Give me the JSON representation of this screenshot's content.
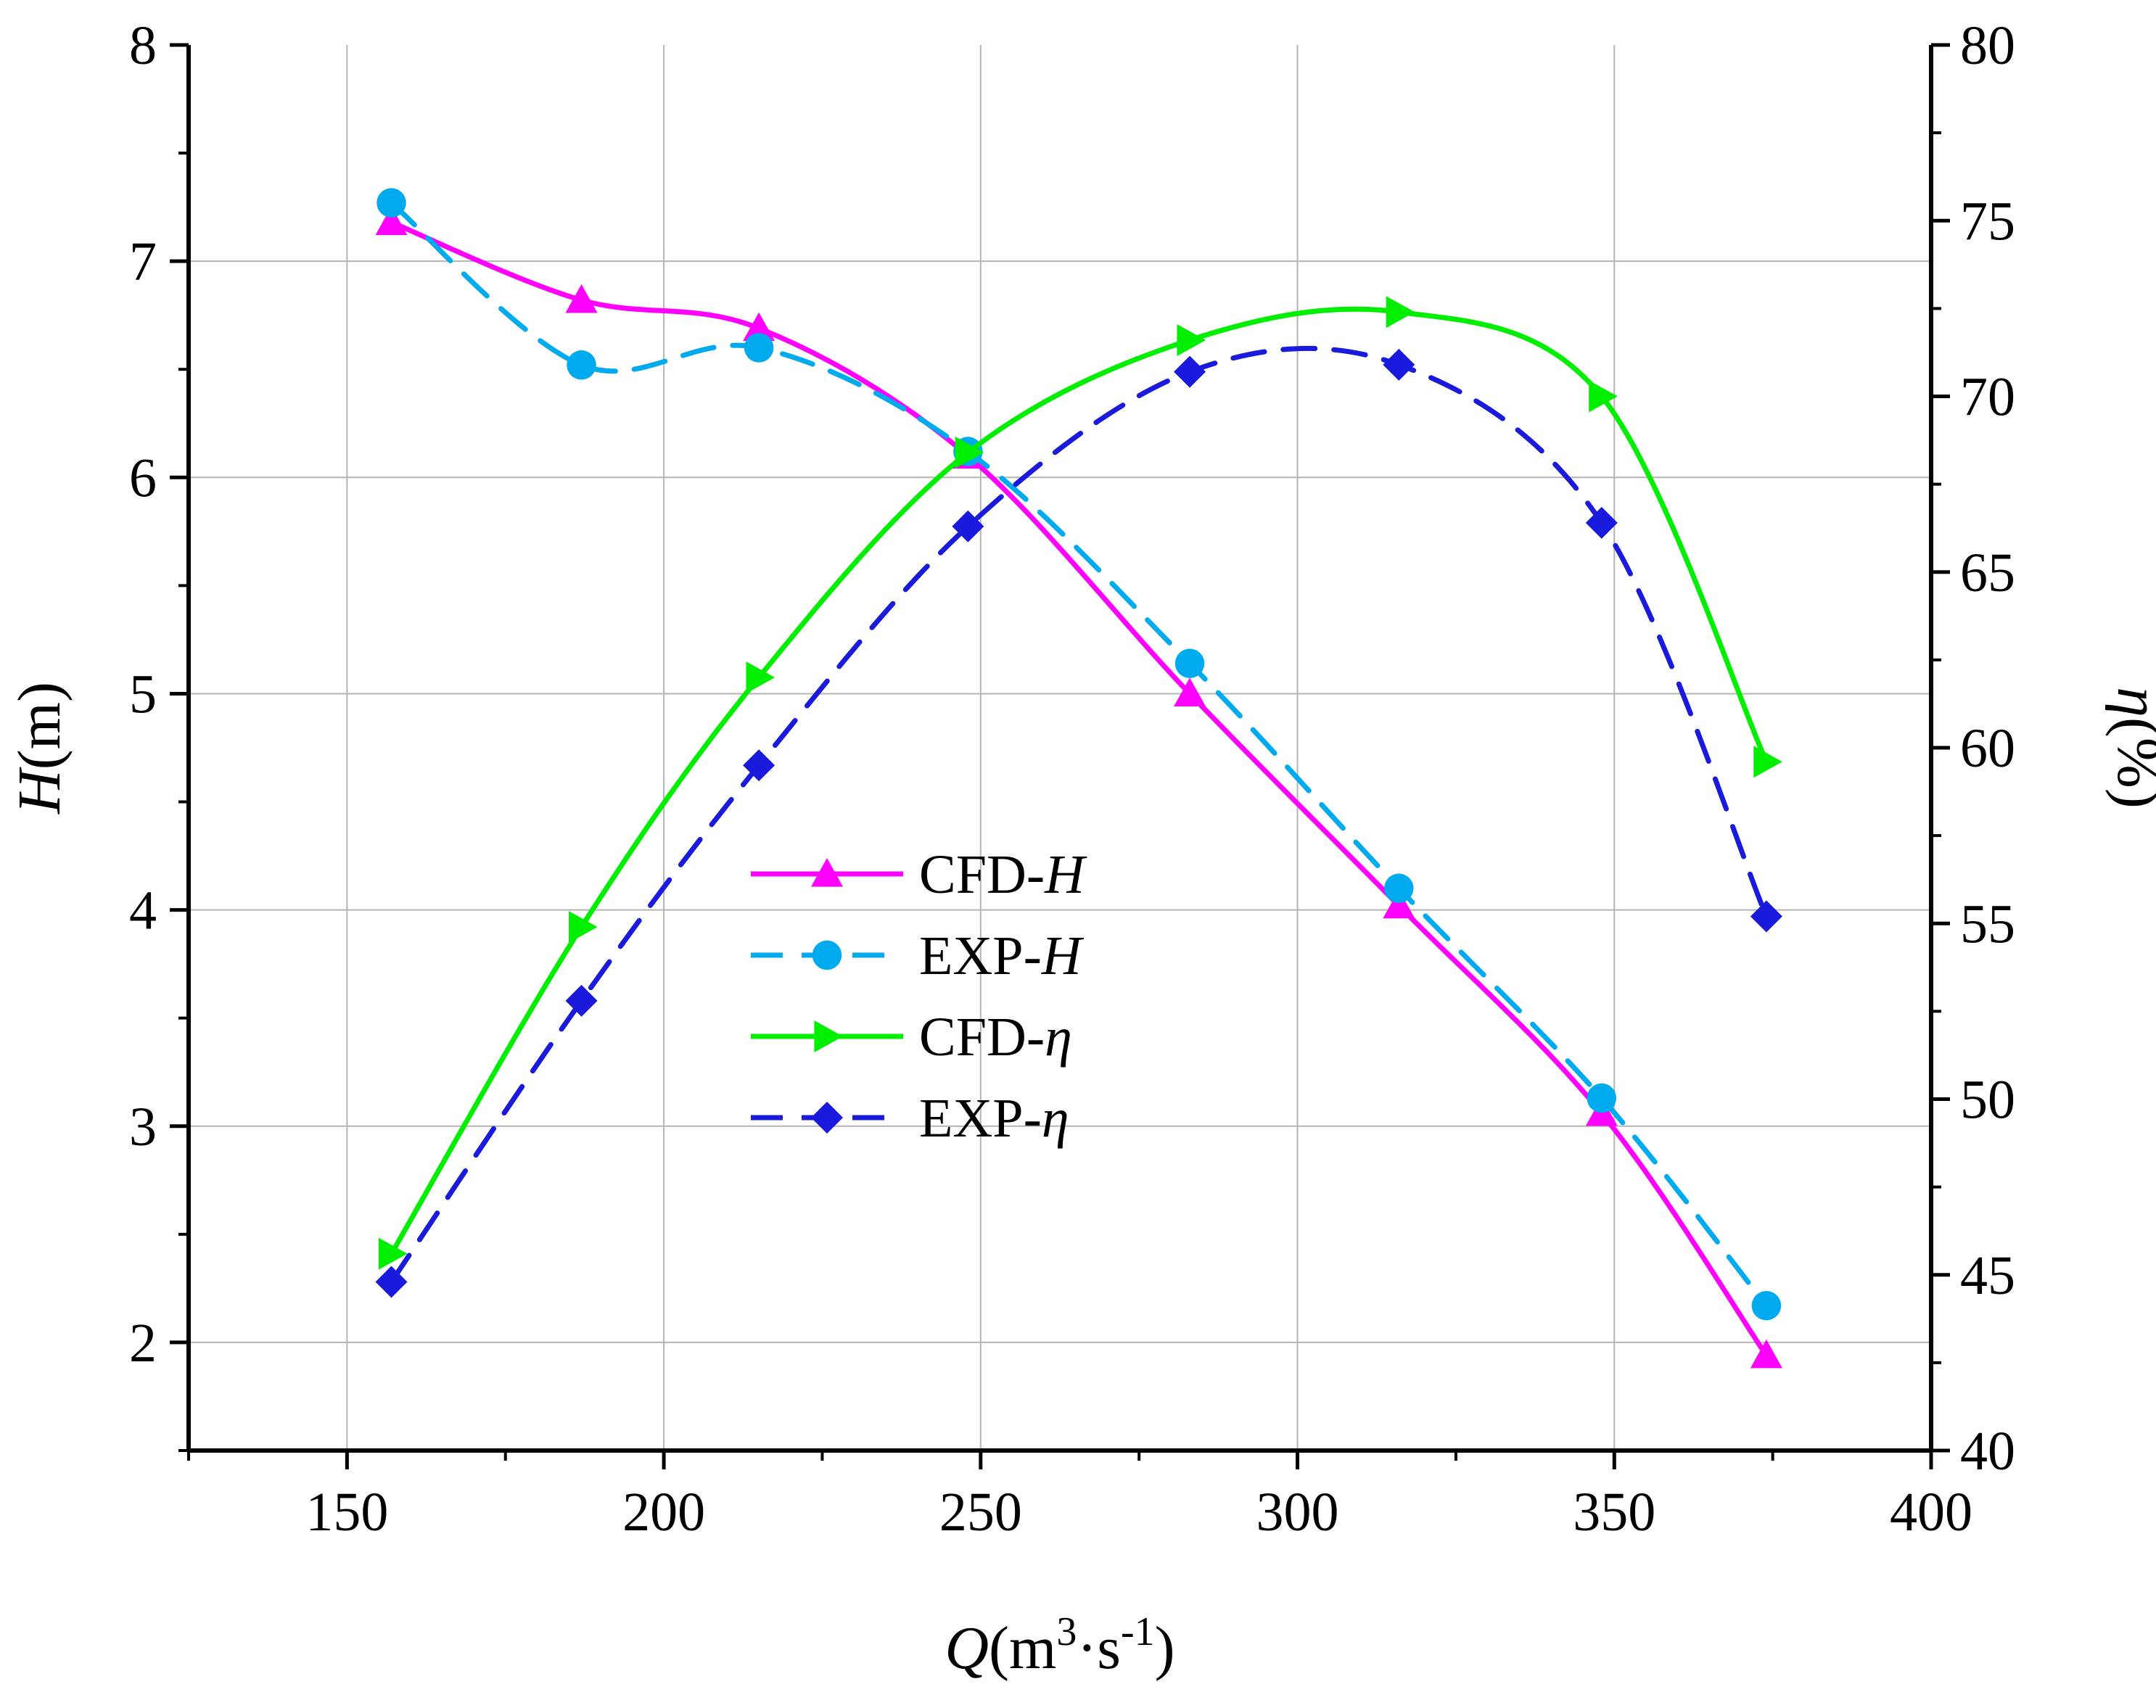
{
  "chart_data": {
    "type": "line",
    "title": "",
    "xlabel": {
      "main": "Q",
      "unit_open": "(m",
      "sup1": "3",
      "mid": "·s",
      "sup2": "-1",
      "close": ")"
    },
    "ylabel_left": {
      "main": "H",
      "unit": "(m)"
    },
    "ylabel_right": {
      "main": "η",
      "unit": "(%)"
    },
    "xlim": [
      125,
      400
    ],
    "ylim_left": [
      1.5,
      8
    ],
    "ylim_right": [
      40,
      80
    ],
    "x_ticks": [
      150,
      200,
      250,
      300,
      350,
      400
    ],
    "x_tick_labels": [
      "150",
      "200",
      "250",
      "300",
      "350",
      "400"
    ],
    "y_left_ticks": [
      2,
      3,
      4,
      5,
      6,
      7,
      8
    ],
    "y_left_tick_labels": [
      "2",
      "3",
      "4",
      "5",
      "6",
      "7",
      "8"
    ],
    "y_right_ticks": [
      40,
      45,
      50,
      55,
      60,
      65,
      70,
      75,
      80
    ],
    "y_right_tick_labels": [
      "40",
      "45",
      "50",
      "55",
      "60",
      "65",
      "70",
      "75",
      "80"
    ],
    "grid": true,
    "legend_position": "center-left",
    "series": [
      {
        "name": "CFD-H",
        "name_main": "CFD-",
        "name_var": "H",
        "axis": "left",
        "color": "#ff00ff",
        "marker": "triangle-up",
        "dash": "solid",
        "x": [
          157,
          187,
          215,
          248,
          283,
          316,
          348,
          374
        ],
        "y": [
          7.18,
          6.82,
          6.69,
          6.1,
          5.0,
          4.02,
          3.06,
          1.94
        ]
      },
      {
        "name": "EXP-H",
        "name_main": "EXP-",
        "name_var": "H",
        "axis": "left",
        "color": "#00aaee",
        "marker": "circle",
        "dash": "dashed",
        "x": [
          157,
          187,
          215,
          248,
          283,
          316,
          348,
          374
        ],
        "y": [
          7.27,
          6.52,
          6.6,
          6.12,
          5.14,
          4.1,
          3.13,
          2.17
        ]
      },
      {
        "name": "CFD-η",
        "name_main": "CFD-",
        "name_var": "η",
        "axis": "right",
        "color": "#00ee00",
        "marker": "triangle-right",
        "dash": "solid",
        "x": [
          157,
          187,
          215,
          248,
          283,
          316,
          348,
          374
        ],
        "y": [
          45.6,
          54.9,
          62.0,
          68.4,
          71.6,
          72.4,
          70.0,
          59.6
        ]
      },
      {
        "name": "EXP-η",
        "name_main": "EXP-",
        "name_var": "η",
        "axis": "right",
        "color": "#1a1adc",
        "marker": "diamond",
        "dash": "dashed",
        "x": [
          157,
          187,
          215,
          248,
          283,
          316,
          348,
          374
        ],
        "y": [
          44.8,
          52.8,
          59.5,
          66.3,
          70.7,
          70.9,
          66.4,
          55.2
        ]
      }
    ]
  }
}
